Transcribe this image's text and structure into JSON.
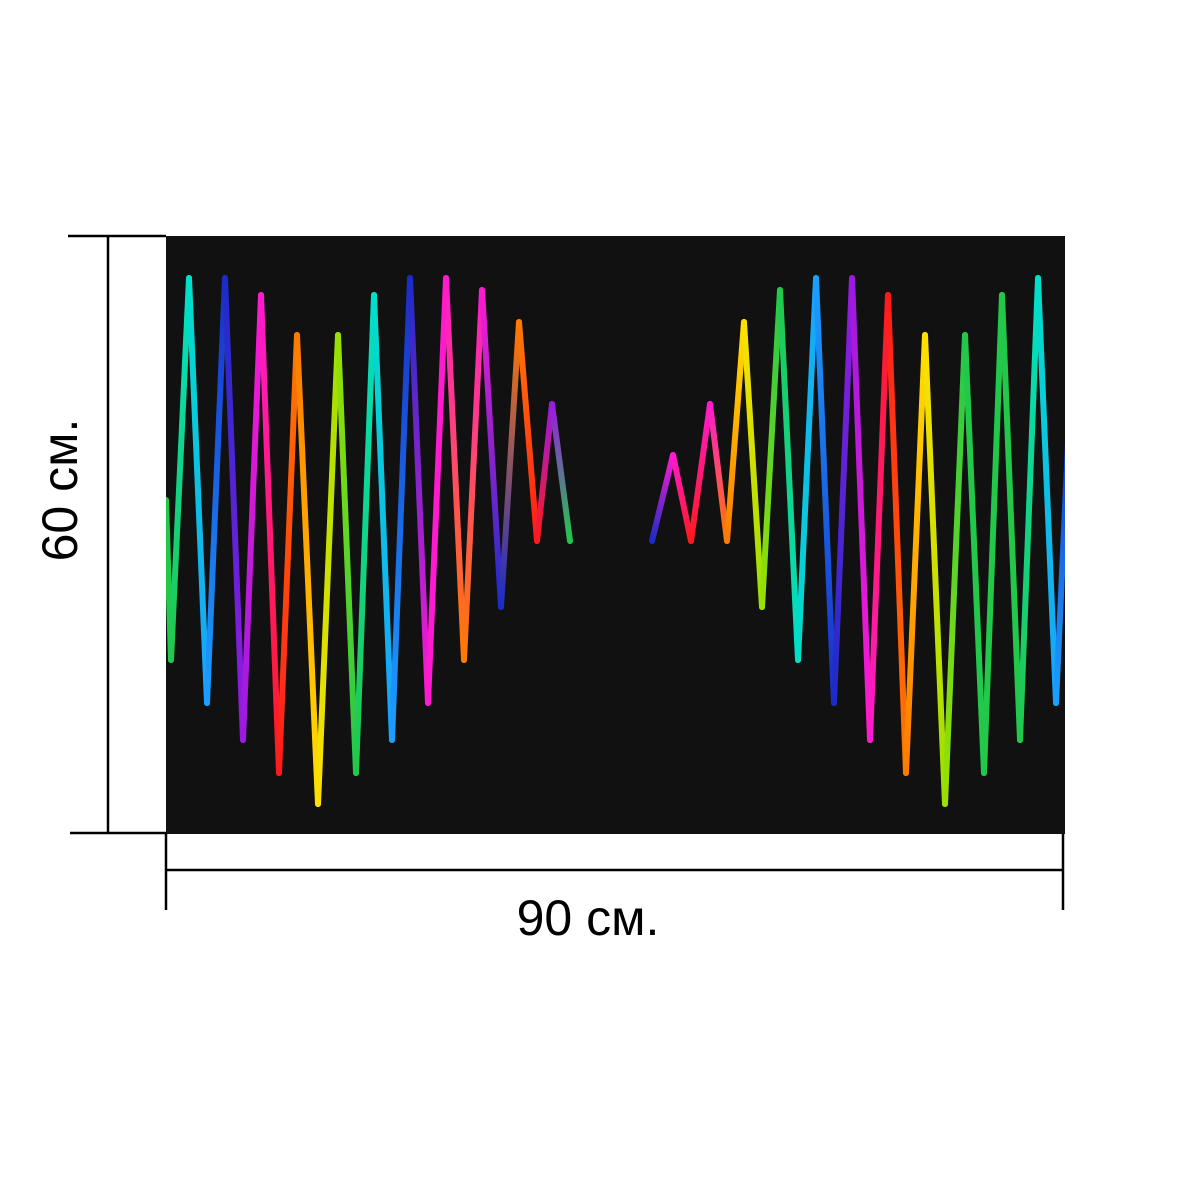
{
  "dimensions": {
    "width_label": "90 см.",
    "height_label": "60 см."
  },
  "print": {
    "background_color": "#111111",
    "palette": [
      "#ff1a1a",
      "#ff7a00",
      "#ffe000",
      "#9be000",
      "#22c84a",
      "#00e0c8",
      "#1aa0ff",
      "#1a2cc8",
      "#9a1ae0",
      "#ff1ad0"
    ]
  },
  "colors": {
    "line": "#000000",
    "page": "#ffffff"
  }
}
